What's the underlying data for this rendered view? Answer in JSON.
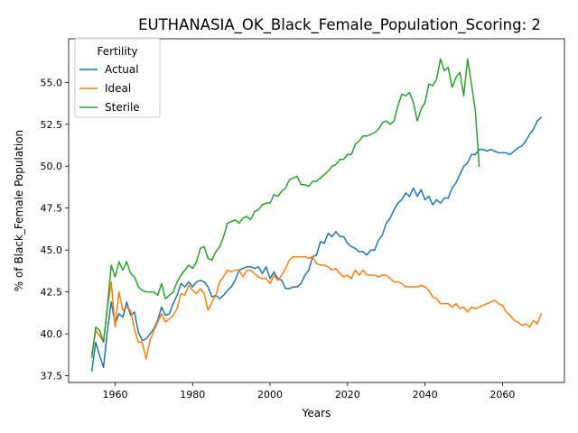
{
  "chart_data": {
    "type": "line",
    "title": "EUTHANASIA_OK_Black_Female_Population_Scoring: 2",
    "xlabel": "Years",
    "ylabel": "% of Black_Female Population",
    "xlim": [
      1948,
      2076
    ],
    "ylim": [
      37.1,
      57.6
    ],
    "xticks": [
      1960,
      1980,
      2000,
      2020,
      2040,
      2060
    ],
    "yticks": [
      37.5,
      40.0,
      42.5,
      45.0,
      47.5,
      50.0,
      52.5,
      55.0
    ],
    "ytick_labels": [
      "37.5",
      "40.0",
      "42.5",
      "45.0",
      "47.5",
      "50.0",
      "52.5",
      "55.0"
    ],
    "grid": false,
    "legend": {
      "title": "Fertility",
      "placement": "upper left"
    },
    "series": [
      {
        "name": "Actual",
        "color": "#1f77b4",
        "x": [
          1954,
          1955,
          1956,
          1957,
          1958,
          1959,
          1960,
          1961,
          1962,
          1963,
          1964,
          1965,
          1966,
          1967,
          1968,
          1969,
          1970,
          1971,
          1972,
          1973,
          1974,
          1975,
          1976,
          1977,
          1978,
          1979,
          1980,
          1981,
          1982,
          1983,
          1984,
          1985,
          1986,
          1987,
          1988,
          1989,
          1990,
          1991,
          1992,
          1993,
          1994,
          1995,
          1996,
          1997,
          1998,
          1999,
          2000,
          2001,
          2002,
          2003,
          2004,
          2005,
          2006,
          2007,
          2008,
          2009,
          2010,
          2011,
          2012,
          2013,
          2014,
          2015,
          2016,
          2017,
          2018,
          2019,
          2020,
          2021,
          2022,
          2023,
          2024,
          2025,
          2026,
          2027,
          2028,
          2029,
          2030,
          2031,
          2032,
          2033,
          2034,
          2035,
          2036,
          2037,
          2038,
          2039,
          2040,
          2041,
          2042,
          2043,
          2044,
          2045,
          2046,
          2047,
          2048,
          2049,
          2050,
          2051,
          2052,
          2053,
          2054,
          2055,
          2056,
          2057,
          2058,
          2059,
          2060,
          2061,
          2062,
          2063,
          2064,
          2065,
          2066,
          2067,
          2068,
          2069,
          2070
        ],
        "values": [
          37.8,
          39.5,
          38.7,
          38.0,
          40.2,
          41.9,
          40.6,
          41.2,
          41.0,
          41.9,
          41.1,
          41.3,
          40.1,
          39.6,
          39.7,
          40.0,
          40.3,
          40.8,
          41.6,
          41.1,
          41.2,
          41.8,
          42.3,
          43.0,
          42.8,
          43.1,
          42.8,
          43.1,
          43.2,
          43.1,
          42.8,
          42.2,
          42.3,
          42.1,
          42.3,
          42.6,
          42.8,
          43.2,
          43.8,
          43.9,
          44.0,
          44.0,
          43.9,
          44.0,
          43.6,
          44.0,
          43.3,
          43.7,
          43.3,
          43.2,
          42.7,
          42.7,
          42.8,
          42.8,
          43.0,
          43.5,
          43.8,
          44.6,
          44.7,
          45.5,
          45.4,
          46.0,
          45.8,
          46.1,
          45.8,
          45.8,
          45.4,
          45.2,
          45.1,
          44.9,
          44.9,
          44.7,
          45.0,
          45.0,
          45.6,
          45.9,
          46.6,
          46.9,
          47.4,
          47.8,
          48.0,
          48.4,
          48.2,
          48.7,
          48.2,
          48.6,
          48.0,
          48.2,
          47.7,
          48.0,
          47.8,
          48.1,
          48.1,
          48.7,
          49.0,
          49.5,
          50.0,
          50.2,
          50.7,
          50.7,
          51.0,
          51.0,
          50.9,
          51.0,
          50.9,
          50.8,
          50.8,
          50.8,
          50.7,
          50.9,
          51.1,
          51.2,
          51.5,
          51.9,
          52.2,
          52.7,
          52.9
        ]
      },
      {
        "name": "Ideal",
        "color": "#ff7f0e",
        "x": [
          1954,
          1955,
          1956,
          1957,
          1958,
          1959,
          1960,
          1961,
          1962,
          1963,
          1964,
          1965,
          1966,
          1967,
          1968,
          1969,
          1970,
          1971,
          1972,
          1973,
          1974,
          1975,
          1976,
          1977,
          1978,
          1979,
          1980,
          1981,
          1982,
          1983,
          1984,
          1985,
          1986,
          1987,
          1988,
          1989,
          1990,
          1991,
          1992,
          1993,
          1994,
          1995,
          1996,
          1997,
          1998,
          1999,
          2000,
          2001,
          2002,
          2003,
          2004,
          2005,
          2006,
          2007,
          2008,
          2009,
          2010,
          2011,
          2012,
          2013,
          2014,
          2015,
          2016,
          2017,
          2018,
          2019,
          2020,
          2021,
          2022,
          2023,
          2024,
          2025,
          2026,
          2027,
          2028,
          2029,
          2030,
          2031,
          2032,
          2033,
          2034,
          2035,
          2036,
          2037,
          2038,
          2039,
          2040,
          2041,
          2042,
          2043,
          2044,
          2045,
          2046,
          2047,
          2048,
          2049,
          2050,
          2051,
          2052,
          2053,
          2054,
          2055,
          2056,
          2057,
          2058,
          2059,
          2060,
          2061,
          2062,
          2063,
          2064,
          2065,
          2066,
          2067,
          2068,
          2069,
          2070
        ],
        "values": [
          38.8,
          40.2,
          39.9,
          39.5,
          41.5,
          43.1,
          40.4,
          42.5,
          41.4,
          41.6,
          41.4,
          40.3,
          39.5,
          39.5,
          38.5,
          39.6,
          40.2,
          40.7,
          41.2,
          40.7,
          40.9,
          41.1,
          41.5,
          42.4,
          42.3,
          42.9,
          42.6,
          42.4,
          42.7,
          42.4,
          41.4,
          41.9,
          42.3,
          43.1,
          43.4,
          43.8,
          43.7,
          43.8,
          43.8,
          43.4,
          43.8,
          43.8,
          43.6,
          43.4,
          43.3,
          43.3,
          43.0,
          43.5,
          43.2,
          43.5,
          43.9,
          44.4,
          44.6,
          44.6,
          44.6,
          44.6,
          44.5,
          44.6,
          44.2,
          44.1,
          44.1,
          44.0,
          43.8,
          43.9,
          43.6,
          43.4,
          43.5,
          43.3,
          43.8,
          43.5,
          43.8,
          43.5,
          43.5,
          43.5,
          43.4,
          43.5,
          43.5,
          43.3,
          43.1,
          43.1,
          43.0,
          42.8,
          42.8,
          42.8,
          42.8,
          42.9,
          42.8,
          42.6,
          42.2,
          42.1,
          41.8,
          41.8,
          41.8,
          41.6,
          41.8,
          41.5,
          41.6,
          41.3,
          41.6,
          41.5,
          41.6,
          41.7,
          41.8,
          41.9,
          42.0,
          41.8,
          41.7,
          41.3,
          41.1,
          40.8,
          40.7,
          40.5,
          40.6,
          40.4,
          40.8,
          40.6,
          41.2
        ]
      },
      {
        "name": "Sterile",
        "color": "#2ca02c",
        "x": [
          1954,
          1955,
          1956,
          1957,
          1958,
          1959,
          1960,
          1961,
          1962,
          1963,
          1964,
          1965,
          1966,
          1967,
          1968,
          1969,
          1970,
          1971,
          1972,
          1973,
          1974,
          1975,
          1976,
          1977,
          1978,
          1979,
          1980,
          1981,
          1982,
          1983,
          1984,
          1985,
          1986,
          1987,
          1988,
          1989,
          1990,
          1991,
          1992,
          1993,
          1994,
          1995,
          1996,
          1997,
          1998,
          1999,
          2000,
          2001,
          2002,
          2003,
          2004,
          2005,
          2006,
          2007,
          2008,
          2009,
          2010,
          2011,
          2012,
          2013,
          2014,
          2015,
          2016,
          2017,
          2018,
          2019,
          2020,
          2021,
          2022,
          2023,
          2024,
          2025,
          2026,
          2027,
          2028,
          2029,
          2030,
          2031,
          2032,
          2033,
          2034,
          2035,
          2036,
          2037,
          2038,
          2039,
          2040,
          2041,
          2042,
          2043,
          2044,
          2045,
          2046,
          2047,
          2048,
          2049,
          2050,
          2051,
          2052,
          2053,
          2054
        ],
        "values": [
          38.6,
          40.4,
          40.2,
          39.5,
          41.6,
          44.1,
          43.4,
          44.3,
          43.8,
          44.3,
          43.6,
          43.4,
          42.8,
          42.6,
          42.5,
          42.5,
          42.5,
          42.3,
          43.0,
          42.1,
          42.3,
          42.5,
          43.1,
          43.5,
          43.8,
          44.1,
          43.9,
          44.3,
          45.1,
          45.2,
          44.5,
          44.4,
          44.9,
          45.2,
          45.8,
          46.6,
          46.7,
          46.8,
          46.6,
          46.9,
          47.0,
          46.8,
          47.3,
          47.4,
          47.7,
          47.8,
          47.8,
          48.3,
          48.2,
          48.5,
          48.7,
          49.2,
          49.3,
          49.4,
          48.9,
          48.9,
          48.8,
          49.1,
          49.1,
          49.3,
          49.5,
          49.7,
          50.0,
          50.1,
          50.4,
          50.4,
          50.7,
          50.7,
          51.3,
          51.5,
          51.8,
          51.8,
          51.9,
          52.0,
          52.2,
          52.6,
          52.7,
          52.5,
          52.7,
          53.6,
          54.3,
          54.2,
          54.4,
          53.8,
          52.7,
          53.4,
          53.8,
          54.9,
          54.8,
          55.2,
          56.4,
          55.7,
          55.9,
          54.7,
          55.3,
          55.6,
          54.2,
          56.4,
          54.9,
          53.3,
          50.0
        ]
      }
    ]
  }
}
